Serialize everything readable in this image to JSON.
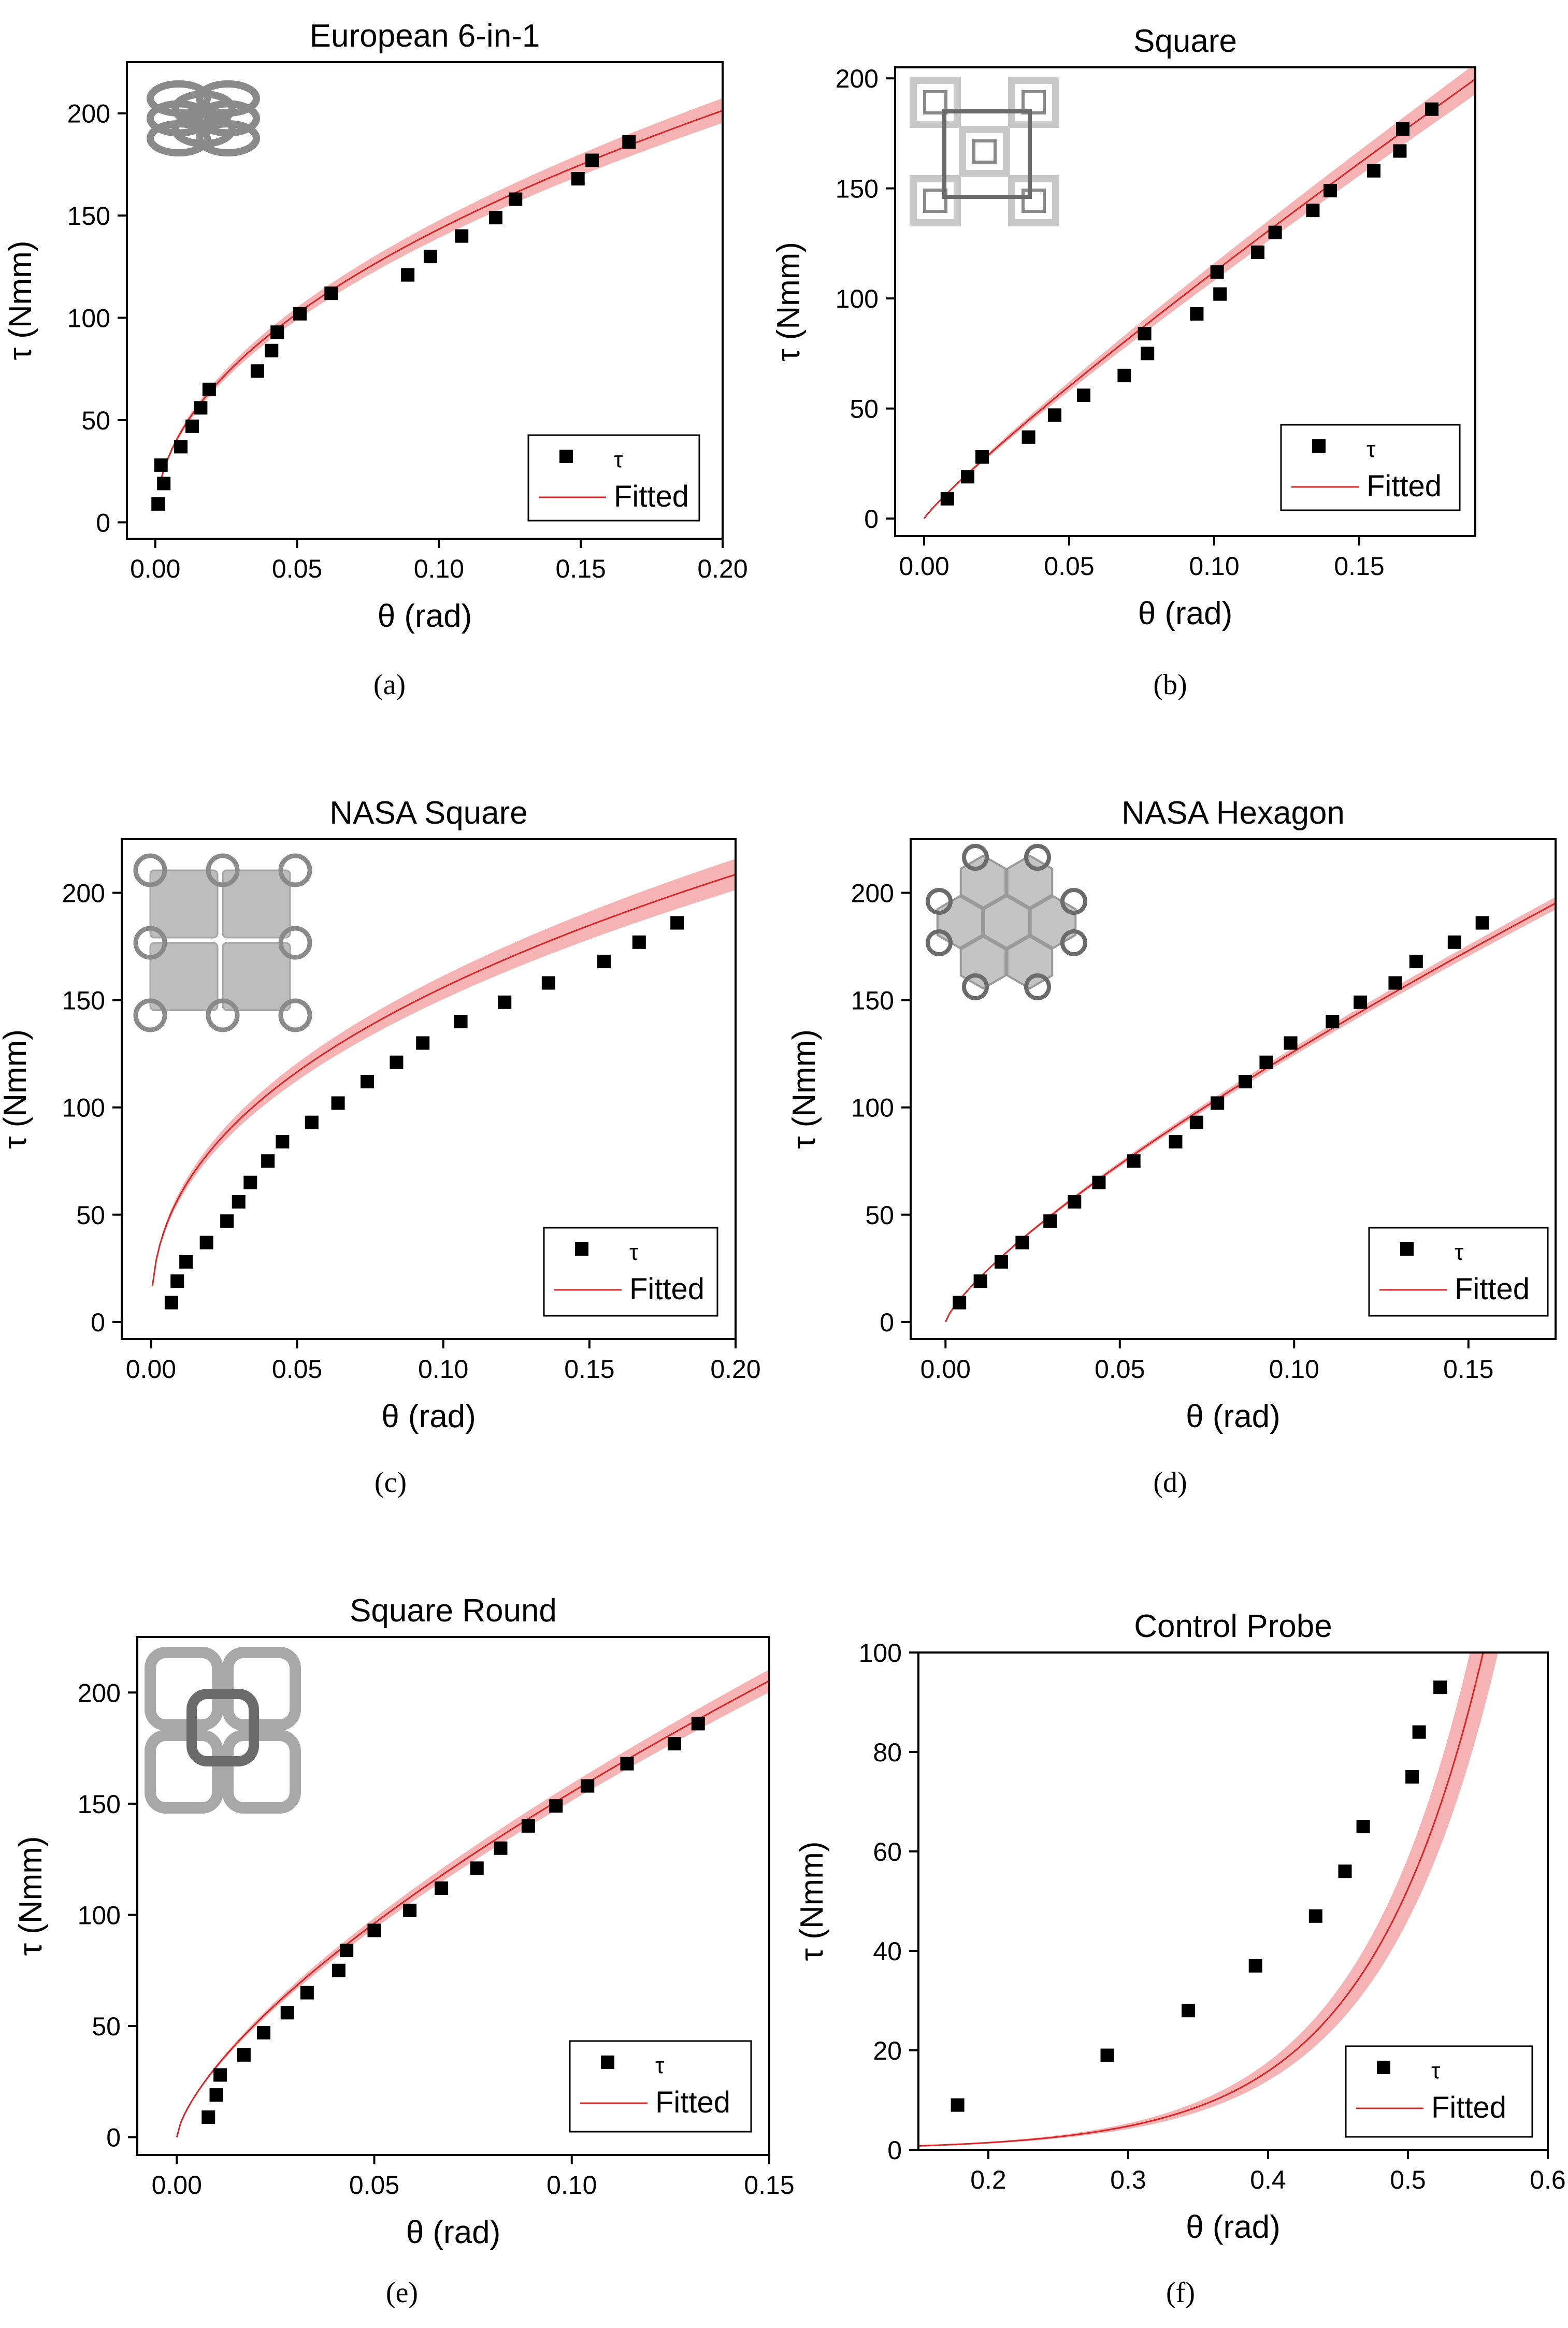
{
  "legend": {
    "marker_label": "τ",
    "fit_label": "Fitted"
  },
  "colors": {
    "marker": "#000000",
    "fit_line": "#d62728",
    "band": "#f4a6a6",
    "axis": "#000000"
  },
  "chart_data": [
    {
      "id": "a",
      "caption": "(a)",
      "title": "European 6-in-1",
      "type": "scatter",
      "icon": "european-6-in-1-icon",
      "xlabel": "θ (rad)",
      "ylabel": "τ (Nmm)",
      "xlim": [
        -0.01,
        0.2
      ],
      "ylim": [
        -8,
        225
      ],
      "xticks": [
        0.0,
        0.05,
        0.1,
        0.15,
        0.2
      ],
      "xtick_labels": [
        "0.00",
        "0.05",
        "0.10",
        "0.15",
        "0.20"
      ],
      "yticks": [
        0,
        50,
        100,
        150,
        200
      ],
      "ytick_labels": [
        "0",
        "50",
        "100",
        "150",
        "200"
      ],
      "points": [
        [
          0.001,
          9
        ],
        [
          0.002,
          28
        ],
        [
          0.003,
          19
        ],
        [
          0.009,
          37
        ],
        [
          0.013,
          47
        ],
        [
          0.016,
          56
        ],
        [
          0.019,
          65
        ],
        [
          0.036,
          74
        ],
        [
          0.041,
          84
        ],
        [
          0.043,
          93
        ],
        [
          0.051,
          102
        ],
        [
          0.062,
          112
        ],
        [
          0.089,
          121
        ],
        [
          0.097,
          130
        ],
        [
          0.108,
          140
        ],
        [
          0.12,
          149
        ],
        [
          0.127,
          158
        ],
        [
          0.149,
          168
        ],
        [
          0.154,
          177
        ],
        [
          0.167,
          186
        ]
      ],
      "fit": {
        "model": "power",
        "a": 443,
        "b": 0.49,
        "x_start": 0.002,
        "x_end": 0.2,
        "band_rel": 0.03
      }
    },
    {
      "id": "b",
      "caption": "(b)",
      "title": "Square",
      "type": "scatter",
      "icon": "square-weave-icon",
      "xlabel": "θ (rad)",
      "ylabel": "τ (Nmm)",
      "xlim": [
        -0.01,
        0.19
      ],
      "ylim": [
        -8,
        205
      ],
      "xticks": [
        0.0,
        0.05,
        0.1,
        0.15
      ],
      "xtick_labels": [
        "0.00",
        "0.05",
        "0.10",
        "0.15"
      ],
      "yticks": [
        0,
        50,
        100,
        150,
        200
      ],
      "ytick_labels": [
        "0",
        "50",
        "100",
        "150",
        "200"
      ],
      "points": [
        [
          0.008,
          9
        ],
        [
          0.015,
          19
        ],
        [
          0.02,
          28
        ],
        [
          0.036,
          37
        ],
        [
          0.045,
          47
        ],
        [
          0.055,
          56
        ],
        [
          0.069,
          65
        ],
        [
          0.077,
          75
        ],
        [
          0.076,
          84
        ],
        [
          0.094,
          93
        ],
        [
          0.102,
          102
        ],
        [
          0.101,
          112
        ],
        [
          0.115,
          121
        ],
        [
          0.121,
          130
        ],
        [
          0.134,
          140
        ],
        [
          0.14,
          149
        ],
        [
          0.155,
          158
        ],
        [
          0.164,
          167
        ],
        [
          0.165,
          177
        ],
        [
          0.175,
          186
        ]
      ],
      "fit": {
        "model": "power",
        "a": 890,
        "b": 0.9,
        "x_start": 0.0,
        "x_end": 0.19,
        "band_rel": 0.035
      }
    },
    {
      "id": "c",
      "caption": "(c)",
      "title": "NASA Square",
      "type": "scatter",
      "icon": "nasa-square-icon",
      "xlabel": "θ (rad)",
      "ylabel": "τ (Nmm)",
      "xlim": [
        -0.01,
        0.2
      ],
      "ylim": [
        -8,
        225
      ],
      "xticks": [
        0.0,
        0.05,
        0.1,
        0.15,
        0.2
      ],
      "xtick_labels": [
        "0.00",
        "0.05",
        "0.10",
        "0.15",
        "0.20"
      ],
      "yticks": [
        0,
        50,
        100,
        150,
        200
      ],
      "ytick_labels": [
        "0",
        "50",
        "100",
        "150",
        "200"
      ],
      "points": [
        [
          0.007,
          9
        ],
        [
          0.009,
          19
        ],
        [
          0.012,
          28
        ],
        [
          0.019,
          37
        ],
        [
          0.026,
          47
        ],
        [
          0.03,
          56
        ],
        [
          0.034,
          65
        ],
        [
          0.04,
          75
        ],
        [
          0.045,
          84
        ],
        [
          0.055,
          93
        ],
        [
          0.064,
          102
        ],
        [
          0.074,
          112
        ],
        [
          0.084,
          121
        ],
        [
          0.093,
          130
        ],
        [
          0.106,
          140
        ],
        [
          0.121,
          149
        ],
        [
          0.136,
          158
        ],
        [
          0.155,
          168
        ],
        [
          0.167,
          177
        ],
        [
          0.18,
          186
        ]
      ],
      "fit": {
        "model": "power",
        "a": 410,
        "b": 0.42,
        "x_start": 0.0005,
        "x_end": 0.2,
        "band_rel": 0.035
      }
    },
    {
      "id": "d",
      "caption": "(d)",
      "title": "NASA Hexagon",
      "type": "scatter",
      "icon": "nasa-hexagon-icon",
      "xlabel": "θ (rad)",
      "ylabel": "τ (Nmm)",
      "xlim": [
        -0.01,
        0.175
      ],
      "ylim": [
        -8,
        225
      ],
      "xticks": [
        0.0,
        0.05,
        0.1,
        0.15
      ],
      "xtick_labels": [
        "0.00",
        "0.05",
        "0.10",
        "0.15"
      ],
      "yticks": [
        0,
        50,
        100,
        150,
        200
      ],
      "ytick_labels": [
        "0",
        "50",
        "100",
        "150",
        "200"
      ],
      "points": [
        [
          0.004,
          9
        ],
        [
          0.01,
          19
        ],
        [
          0.016,
          28
        ],
        [
          0.022,
          37
        ],
        [
          0.03,
          47
        ],
        [
          0.037,
          56
        ],
        [
          0.044,
          65
        ],
        [
          0.054,
          75
        ],
        [
          0.066,
          84
        ],
        [
          0.072,
          93
        ],
        [
          0.078,
          102
        ],
        [
          0.086,
          112
        ],
        [
          0.092,
          121
        ],
        [
          0.099,
          130
        ],
        [
          0.111,
          140
        ],
        [
          0.119,
          149
        ],
        [
          0.129,
          158
        ],
        [
          0.135,
          168
        ],
        [
          0.146,
          177
        ],
        [
          0.154,
          186
        ]
      ],
      "fit": {
        "model": "power",
        "a": 760,
        "b": 0.78,
        "x_start": 0.0,
        "x_end": 0.175,
        "band_rel": 0.015
      }
    },
    {
      "id": "e",
      "caption": "(e)",
      "title": "Square Round",
      "type": "scatter",
      "icon": "square-round-icon",
      "xlabel": "θ (rad)",
      "ylabel": "τ (Nmm)",
      "xlim": [
        -0.01,
        0.15
      ],
      "ylim": [
        -8,
        225
      ],
      "xticks": [
        0.0,
        0.05,
        0.1,
        0.15
      ],
      "xtick_labels": [
        "0.00",
        "0.05",
        "0.10",
        "0.15"
      ],
      "yticks": [
        0,
        50,
        100,
        150,
        200
      ],
      "ytick_labels": [
        "0",
        "50",
        "100",
        "150",
        "200"
      ],
      "points": [
        [
          0.008,
          9
        ],
        [
          0.01,
          19
        ],
        [
          0.011,
          28
        ],
        [
          0.017,
          37
        ],
        [
          0.022,
          47
        ],
        [
          0.028,
          56
        ],
        [
          0.033,
          65
        ],
        [
          0.041,
          75
        ],
        [
          0.043,
          84
        ],
        [
          0.05,
          93
        ],
        [
          0.059,
          102
        ],
        [
          0.067,
          112
        ],
        [
          0.076,
          121
        ],
        [
          0.082,
          130
        ],
        [
          0.089,
          140
        ],
        [
          0.096,
          149
        ],
        [
          0.104,
          158
        ],
        [
          0.114,
          168
        ],
        [
          0.126,
          177
        ],
        [
          0.132,
          186
        ]
      ],
      "fit": {
        "model": "power",
        "a": 760,
        "b": 0.69,
        "x_start": 0.0,
        "x_end": 0.15,
        "band_rel": 0.025
      }
    },
    {
      "id": "f",
      "caption": "(f)",
      "title": "Control Probe",
      "type": "scatter",
      "icon": "",
      "xlabel": "θ (rad)",
      "ylabel": "τ (Nmm)",
      "xlim": [
        0.15,
        0.6
      ],
      "ylim": [
        0,
        100
      ],
      "xticks": [
        0.2,
        0.3,
        0.4,
        0.5,
        0.6
      ],
      "xtick_labels": [
        "0.2",
        "0.3",
        "0.4",
        "0.5",
        "0.6"
      ],
      "yticks": [
        0,
        20,
        40,
        60,
        80,
        100
      ],
      "ytick_labels": [
        "0",
        "20",
        "40",
        "60",
        "80",
        "100"
      ],
      "points": [
        [
          0.178,
          9
        ],
        [
          0.285,
          19
        ],
        [
          0.343,
          28
        ],
        [
          0.391,
          37
        ],
        [
          0.434,
          47
        ],
        [
          0.455,
          56
        ],
        [
          0.468,
          65
        ],
        [
          0.503,
          75
        ],
        [
          0.508,
          84
        ],
        [
          0.523,
          93
        ]
      ],
      "fit": {
        "model": "exp",
        "A": 0.13,
        "k": 12.0,
        "x_start": 0.15,
        "x_end": 0.57,
        "band_rel": 0.12
      }
    }
  ]
}
